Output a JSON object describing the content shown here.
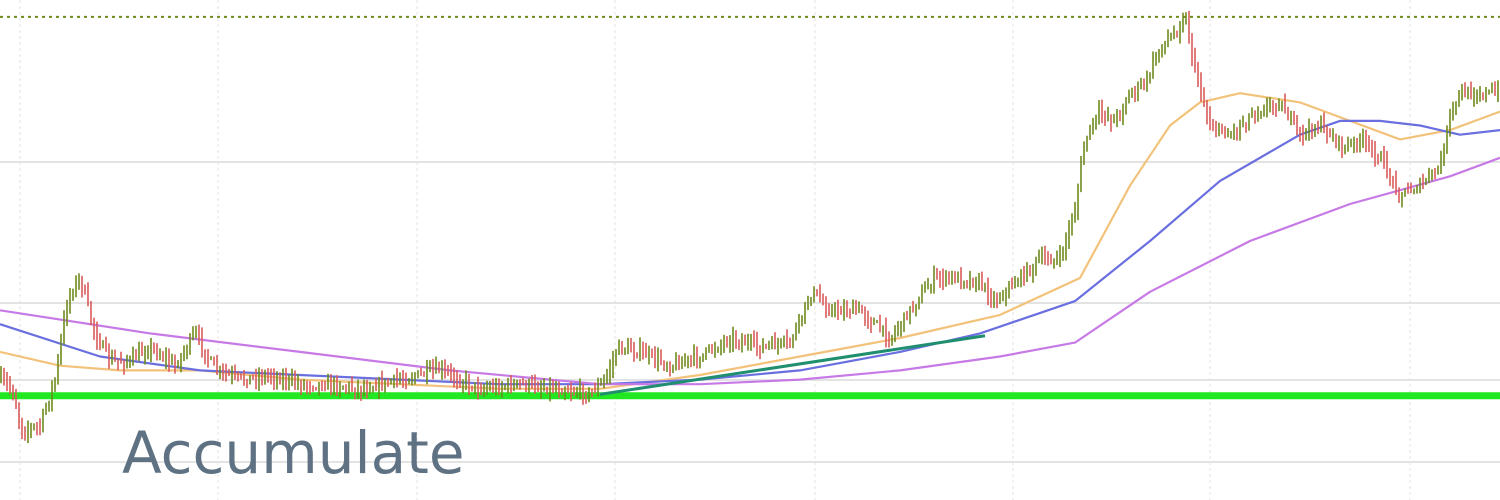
{
  "chart_data": {
    "type": "line",
    "title": "",
    "xlabel": "",
    "ylabel": "",
    "xlim": [
      0,
      1500
    ],
    "ylim": [
      0,
      100
    ],
    "grid": true,
    "annotation": "Accumulate",
    "colors": {
      "price_up": "#6e8b1e",
      "price_down": "#d85b5b",
      "ma_fast": "#f3c27a",
      "ma_mid": "#6a6fe0",
      "ma_slow": "#c77ae6",
      "support": "#22e822",
      "resistance": "#6e8b1e",
      "trendline": "#1f8f6f",
      "grid": "#e3e3e3"
    },
    "price": {
      "name": "",
      "x": [
        0,
        12,
        22,
        40,
        55,
        68,
        80,
        95,
        110,
        130,
        150,
        175,
        195,
        215,
        240,
        270,
        300,
        330,
        360,
        400,
        440,
        460,
        480,
        520,
        560,
        590,
        605,
        618,
        640,
        670,
        700,
        730,
        760,
        790,
        812,
        830,
        860,
        890,
        920,
        935,
        960,
        980,
        995,
        1020,
        1040,
        1060,
        1075,
        1085,
        1100,
        1115,
        1130,
        1145,
        1160,
        1175,
        1185,
        1195,
        1210,
        1230,
        1255,
        1280,
        1300,
        1320,
        1345,
        1360,
        1380,
        1400,
        1420,
        1440,
        1450,
        1460,
        1475,
        1490,
        1500
      ],
      "y": [
        20,
        18,
        9,
        10,
        20,
        38,
        42,
        30,
        24,
        24,
        27,
        23,
        30,
        22,
        20,
        21,
        19,
        19,
        18,
        20,
        22,
        20,
        18,
        19,
        18,
        17,
        20,
        27,
        26,
        23,
        25,
        29,
        27,
        28,
        39,
        35,
        35,
        29,
        38,
        42,
        42,
        41,
        37,
        42,
        46,
        46,
        57,
        72,
        78,
        76,
        82,
        84,
        92,
        95,
        99,
        87,
        75,
        73,
        78,
        80,
        73,
        75,
        70,
        72,
        68,
        60,
        62,
        66,
        77,
        82,
        82,
        82,
        82
      ]
    },
    "series": [
      {
        "name": "",
        "role": "ma_fast",
        "x": [
          0,
          60,
          120,
          200,
          300,
          400,
          500,
          600,
          700,
          800,
          900,
          1000,
          1080,
          1130,
          1170,
          1200,
          1240,
          1300,
          1350,
          1400,
          1450,
          1500
        ],
        "y": [
          26,
          23,
          22,
          22,
          20,
          19,
          18,
          18,
          21,
          25,
          29,
          34,
          42,
          62,
          75,
          80,
          82,
          80,
          76,
          72,
          74,
          78
        ]
      },
      {
        "name": "",
        "role": "ma_mid",
        "x": [
          0,
          100,
          200,
          300,
          400,
          500,
          600,
          700,
          800,
          900,
          980,
          1075,
          1150,
          1220,
          1300,
          1340,
          1380,
          1420,
          1460,
          1500
        ],
        "y": [
          32,
          25,
          22,
          21,
          20,
          19,
          19,
          20,
          22,
          26,
          30,
          37,
          50,
          63,
          73,
          76,
          76,
          75,
          73,
          74
        ]
      },
      {
        "name": "",
        "role": "ma_slow",
        "x": [
          0,
          150,
          300,
          450,
          600,
          700,
          800,
          900,
          1000,
          1075,
          1150,
          1250,
          1350,
          1450,
          1500
        ],
        "y": [
          35,
          30,
          26,
          22,
          19,
          19,
          20,
          22,
          25,
          28,
          39,
          50,
          58,
          64,
          68
        ]
      }
    ],
    "levels": [
      {
        "role": "support",
        "y": 16.5
      },
      {
        "role": "resistance",
        "y": 98.5
      }
    ],
    "trendline": {
      "x": [
        600,
        985
      ],
      "y": [
        16.8,
        29.5
      ]
    }
  }
}
